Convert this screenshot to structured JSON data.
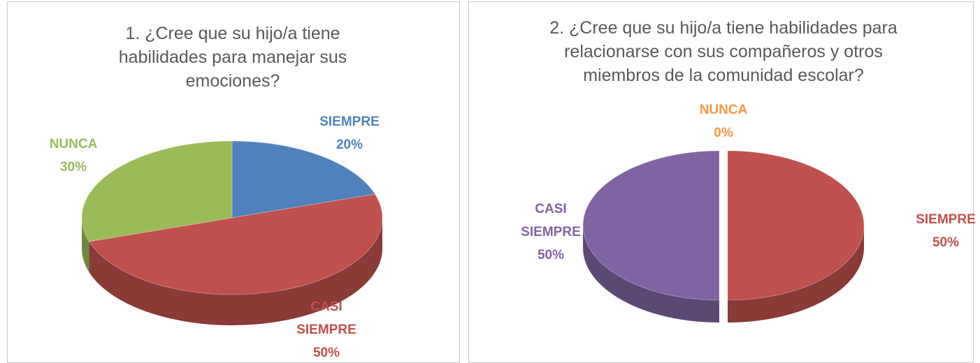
{
  "chart_data": [
    {
      "type": "pie",
      "title": "1.  ¿Cree que su hijo/a tiene habilidades para manejar sus emociones?",
      "categories": [
        "SIEMPRE",
        "CASI SIEMPRE",
        "NUNCA"
      ],
      "values": [
        20,
        50,
        30
      ],
      "value_labels": [
        "20%",
        "50%",
        "30%"
      ],
      "colors": [
        "#4f81bd",
        "#c0504d",
        "#9bbb59"
      ]
    },
    {
      "type": "pie",
      "title": "2.  ¿Cree que su hijo/a tiene habilidades para relacionarse con sus compañeros y otros miembros de la comunidad escolar?",
      "categories": [
        "NUNCA",
        "SIEMPRE",
        "CASI SIEMPRE"
      ],
      "values": [
        0,
        50,
        50
      ],
      "value_labels": [
        "0%",
        "50%",
        "50%"
      ],
      "colors": [
        "#f79646",
        "#c0504d",
        "#8064a2"
      ]
    }
  ]
}
